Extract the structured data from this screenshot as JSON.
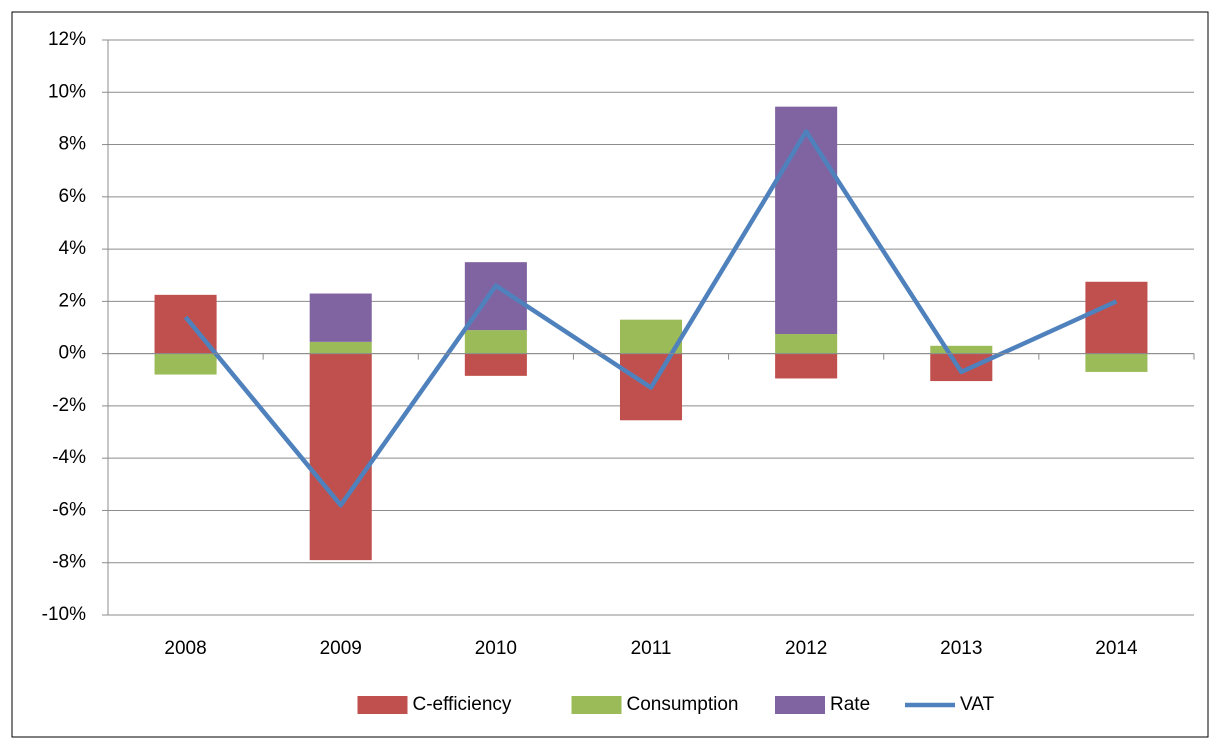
{
  "chart_data": {
    "type": "bar",
    "stacked": true,
    "categories": [
      "2008",
      "2009",
      "2010",
      "2011",
      "2012",
      "2013",
      "2014"
    ],
    "series": [
      {
        "name": "C-efficiency",
        "color": "#c0504d",
        "values": [
          2.25,
          -7.9,
          -0.85,
          -2.55,
          -0.95,
          -1.05,
          2.75
        ]
      },
      {
        "name": "Consumption",
        "color": "#9bbb59",
        "values": [
          -0.8,
          0.45,
          0.9,
          1.3,
          0.75,
          0.3,
          -0.7
        ]
      },
      {
        "name": "Rate",
        "color": "#8064a2",
        "values": [
          0,
          1.85,
          2.6,
          0,
          8.7,
          0,
          0
        ]
      },
      {
        "name": "VAT",
        "color": "#4f81bd",
        "type": "line",
        "values": [
          1.4,
          -5.8,
          2.6,
          -1.3,
          8.5,
          -0.7,
          2.0
        ]
      }
    ],
    "ylim": [
      -10,
      12
    ],
    "yticks": [
      {
        "value": -10,
        "label": "-10%"
      },
      {
        "value": -8,
        "label": "-8%"
      },
      {
        "value": -6,
        "label": "-6%"
      },
      {
        "value": -4,
        "label": "-4%"
      },
      {
        "value": -2,
        "label": "-2%"
      },
      {
        "value": 0,
        "label": "0%"
      },
      {
        "value": 2,
        "label": "2%"
      },
      {
        "value": 4,
        "label": "4%"
      },
      {
        "value": 6,
        "label": "6%"
      },
      {
        "value": 8,
        "label": "8%"
      },
      {
        "value": 10,
        "label": "10%"
      },
      {
        "value": 12,
        "label": "12%"
      }
    ],
    "grid": true,
    "legend": "bottom"
  }
}
